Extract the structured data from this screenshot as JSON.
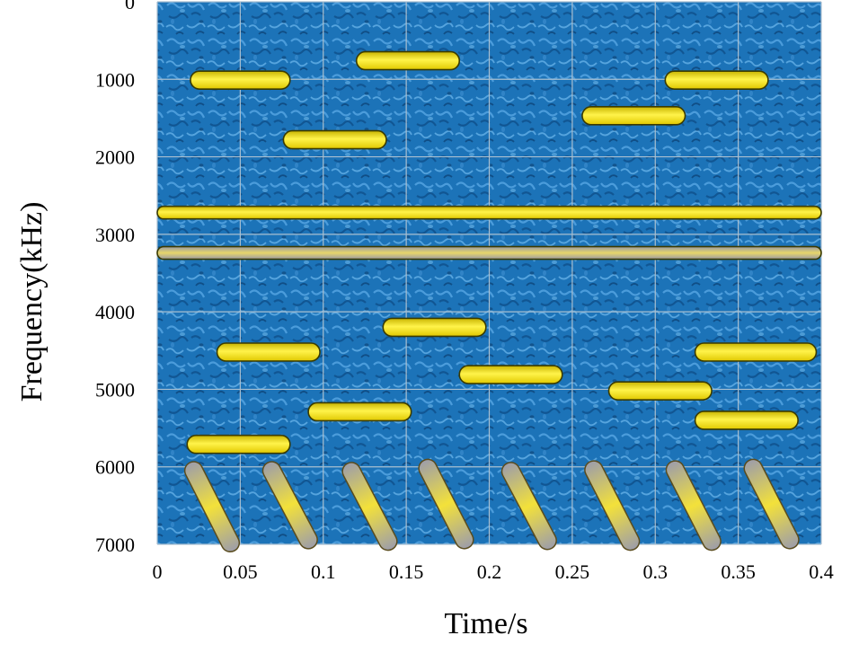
{
  "chart_data": {
    "type": "spectrogram",
    "xlabel": "Time/s",
    "ylabel": "Frequency(kHz)",
    "xlim": [
      0,
      0.4
    ],
    "ylim": [
      0,
      7000
    ],
    "y_inverted": true,
    "x_ticks": [
      "0",
      "0.05",
      "0.1",
      "0.15",
      "0.2",
      "0.25",
      "0.3",
      "0.35",
      "0.4"
    ],
    "y_ticks": [
      "0",
      "1000",
      "2000",
      "3000",
      "4000",
      "5000",
      "6000",
      "7000"
    ],
    "grid": true,
    "background": "blue textured noise",
    "colors": {
      "background": "#1c73b8",
      "tone": "#f4e400",
      "tone_outline": "#3b3b00",
      "chirp_body": "#a6a6b4",
      "grid": "#a9bfd0"
    },
    "series": [
      {
        "kind": "continuous-tone",
        "segments": [
          {
            "x0": 0.0,
            "x1": 0.4,
            "freq": 2720,
            "style": "yellow"
          },
          {
            "x0": 0.0,
            "x1": 0.4,
            "freq": 3240,
            "style": "gray"
          }
        ]
      },
      {
        "kind": "hopping-tone",
        "segments": [
          {
            "x0": 0.02,
            "x1": 0.08,
            "freq": 1010
          },
          {
            "x0": 0.076,
            "x1": 0.138,
            "freq": 1780
          },
          {
            "x0": 0.12,
            "x1": 0.182,
            "freq": 760
          },
          {
            "x0": 0.256,
            "x1": 0.318,
            "freq": 1470
          },
          {
            "x0": 0.306,
            "x1": 0.368,
            "freq": 1010
          }
        ]
      },
      {
        "kind": "hopping-tone",
        "segments": [
          {
            "x0": 0.036,
            "x1": 0.098,
            "freq": 4520
          },
          {
            "x0": 0.091,
            "x1": 0.153,
            "freq": 5290
          },
          {
            "x0": 0.136,
            "x1": 0.198,
            "freq": 4200
          },
          {
            "x0": 0.182,
            "x1": 0.244,
            "freq": 4810
          },
          {
            "x0": 0.272,
            "x1": 0.334,
            "freq": 5020
          },
          {
            "x0": 0.324,
            "x1": 0.386,
            "freq": 5400
          },
          {
            "x0": 0.324,
            "x1": 0.397,
            "freq": 4520
          },
          {
            "x0": 0.018,
            "x1": 0.08,
            "freq": 5710
          }
        ]
      },
      {
        "kind": "chirp",
        "segments": [
          {
            "x0": 0.022,
            "x1": 0.044,
            "f0": 6050,
            "f1": 6980
          },
          {
            "x0": 0.069,
            "x1": 0.091,
            "f0": 6050,
            "f1": 6940
          },
          {
            "x0": 0.117,
            "x1": 0.139,
            "f0": 6060,
            "f1": 6960
          },
          {
            "x0": 0.163,
            "x1": 0.185,
            "f0": 6020,
            "f1": 6940
          },
          {
            "x0": 0.213,
            "x1": 0.235,
            "f0": 6060,
            "f1": 6950
          },
          {
            "x0": 0.263,
            "x1": 0.285,
            "f0": 6040,
            "f1": 6960
          },
          {
            "x0": 0.312,
            "x1": 0.334,
            "f0": 6040,
            "f1": 6960
          },
          {
            "x0": 0.359,
            "x1": 0.381,
            "f0": 6020,
            "f1": 6940
          }
        ]
      }
    ]
  }
}
